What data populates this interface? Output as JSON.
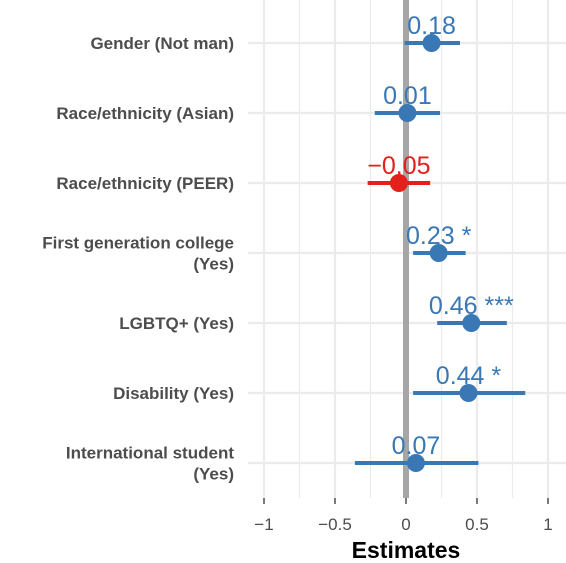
{
  "chart_data": {
    "type": "forest",
    "xlabel": "Estimates",
    "xlim": [
      -1.05,
      1.05
    ],
    "xticks": [
      -1,
      -0.5,
      0,
      0.5,
      1
    ],
    "xtick_labels": [
      "−1",
      "−0.5",
      "0",
      "0.5",
      "1"
    ],
    "grid": true,
    "zero_line": 0,
    "colors": {
      "positive": "#3a78b5",
      "negative": "#e2201c",
      "zero_line": "#a6a6a6",
      "grid": "#ebebeb"
    },
    "rows": [
      {
        "label": [
          "Gender (Not man)"
        ],
        "estimate": 0.18,
        "ci": [
          -0.01,
          0.38
        ],
        "text": "0.18",
        "stars": ""
      },
      {
        "label": [
          "Race/ethnicity (Asian)"
        ],
        "estimate": 0.01,
        "ci": [
          -0.22,
          0.24
        ],
        "text": "0.01",
        "stars": ""
      },
      {
        "label": [
          "Race/ethnicity (PEER)"
        ],
        "estimate": -0.05,
        "ci": [
          -0.27,
          0.17
        ],
        "text": "−0.05",
        "stars": ""
      },
      {
        "label": [
          "First generation college",
          "(Yes)"
        ],
        "estimate": 0.23,
        "ci": [
          0.05,
          0.42
        ],
        "text": "0.23",
        "stars": "*"
      },
      {
        "label": [
          "LGBTQ+ (Yes)"
        ],
        "estimate": 0.46,
        "ci": [
          0.22,
          0.71
        ],
        "text": "0.46",
        "stars": "***"
      },
      {
        "label": [
          "Disability (Yes)"
        ],
        "estimate": 0.44,
        "ci": [
          0.05,
          0.84
        ],
        "text": "0.44",
        "stars": "*"
      },
      {
        "label": [
          "International student",
          "(Yes)"
        ],
        "estimate": 0.07,
        "ci": [
          -0.36,
          0.51
        ],
        "text": "0.07",
        "stars": ""
      }
    ]
  }
}
